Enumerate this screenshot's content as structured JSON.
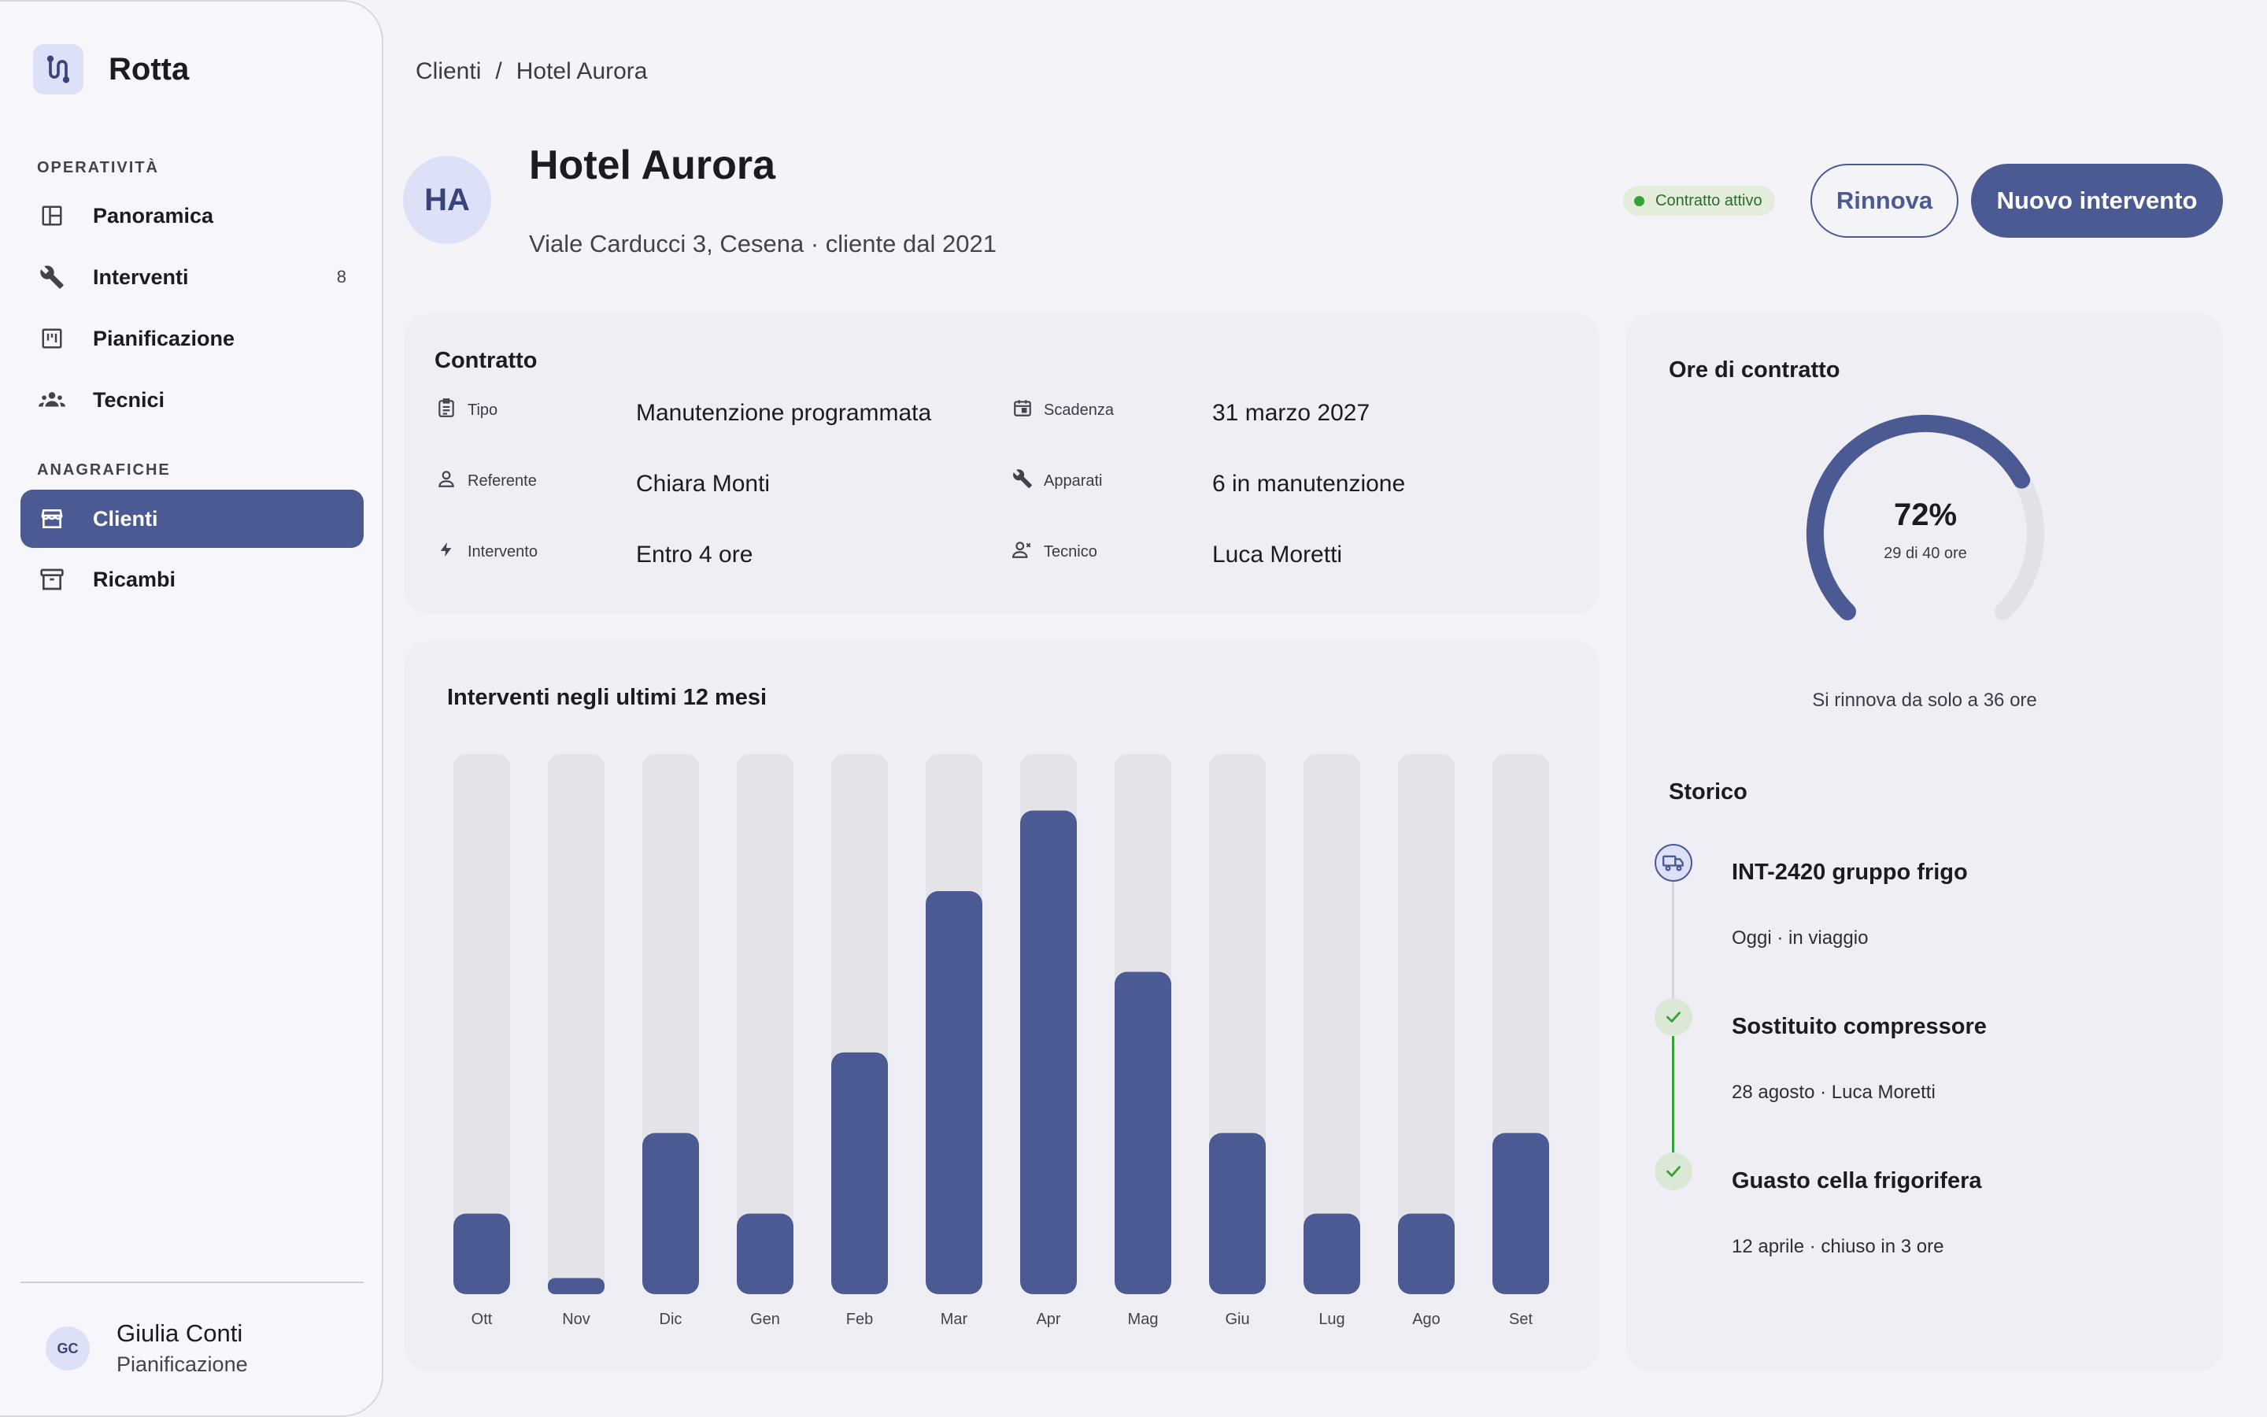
{
  "app": {
    "name": "Rotta"
  },
  "sidebar": {
    "sections": [
      {
        "label": "OPERATIVITÀ"
      },
      {
        "label": "ANAGRAFICHE"
      }
    ],
    "items": [
      {
        "label": "Panoramica",
        "icon": "dashboard-icon"
      },
      {
        "label": "Interventi",
        "icon": "wrench-icon",
        "badge": "8"
      },
      {
        "label": "Pianificazione",
        "icon": "calendar-board-icon"
      },
      {
        "label": "Tecnici",
        "icon": "people-icon"
      },
      {
        "label": "Clienti",
        "icon": "store-icon",
        "active": true
      },
      {
        "label": "Ricambi",
        "icon": "archive-icon"
      }
    ],
    "user": {
      "initials": "GC",
      "name": "Giulia Conti",
      "role": "Pianificazione"
    }
  },
  "breadcrumb": {
    "parent": "Clienti",
    "separator": "/",
    "current": "Hotel Aurora"
  },
  "client": {
    "initials": "HA",
    "name": "Hotel Aurora",
    "subtitle": "Viale Carducci 3, Cesena · cliente dal 2021",
    "status": "Contratto attivo"
  },
  "actions": {
    "renew": "Rinnova",
    "new_intervention": "Nuovo intervento"
  },
  "contract": {
    "title": "Contratto",
    "fields": [
      {
        "label": "Tipo",
        "value": "Manutenzione programmata",
        "icon": "clipboard-icon"
      },
      {
        "label": "Scadenza",
        "value": "31 marzo 2027",
        "icon": "calendar-icon"
      },
      {
        "label": "Referente",
        "value": "Chiara Monti",
        "icon": "person-icon"
      },
      {
        "label": "Apparati",
        "value": "6 in manutenzione",
        "icon": "wrench-icon"
      },
      {
        "label": "Intervento",
        "value": "Entro 4 ore",
        "icon": "bolt-icon"
      },
      {
        "label": "Tecnico",
        "value": "Luca Moretti",
        "icon": "technician-icon"
      }
    ]
  },
  "chart_data": {
    "type": "bar",
    "title": "Interventi negli ultimi 12 mesi",
    "categories": [
      "Ott",
      "Nov",
      "Dic",
      "Gen",
      "Feb",
      "Mar",
      "Apr",
      "Mag",
      "Giu",
      "Lug",
      "Ago",
      "Set"
    ],
    "values": [
      1,
      0.2,
      2,
      1,
      3,
      5,
      6,
      4,
      2,
      1,
      1,
      2
    ],
    "ylim": [
      0,
      6.7
    ],
    "grid": false,
    "colors": {
      "bar": "#4b5a92",
      "track": "#e4e3e8"
    }
  },
  "hours": {
    "title": "Ore di contratto",
    "percent_label": "72%",
    "percent": 0.725,
    "detail": "29 di 40 ore",
    "note": "Si rinnova da solo a 36 ore"
  },
  "history": {
    "title": "Storico",
    "items": [
      {
        "title": "INT-2420 gruppo frigo",
        "meta": "Oggi · in viaggio",
        "status": "in-progress",
        "icon": "truck-icon"
      },
      {
        "title": "Sostituito compressore",
        "meta": "28 agosto · Luca Moretti",
        "status": "done",
        "icon": "check-icon"
      },
      {
        "title": "Guasto cella frigorifera",
        "meta": "12 aprile · chiuso in 3 ore",
        "status": "done",
        "icon": "check-icon"
      }
    ]
  },
  "colors": {
    "accent": "#4b5a92",
    "success": "#35a033",
    "surface": "#efeef4"
  }
}
